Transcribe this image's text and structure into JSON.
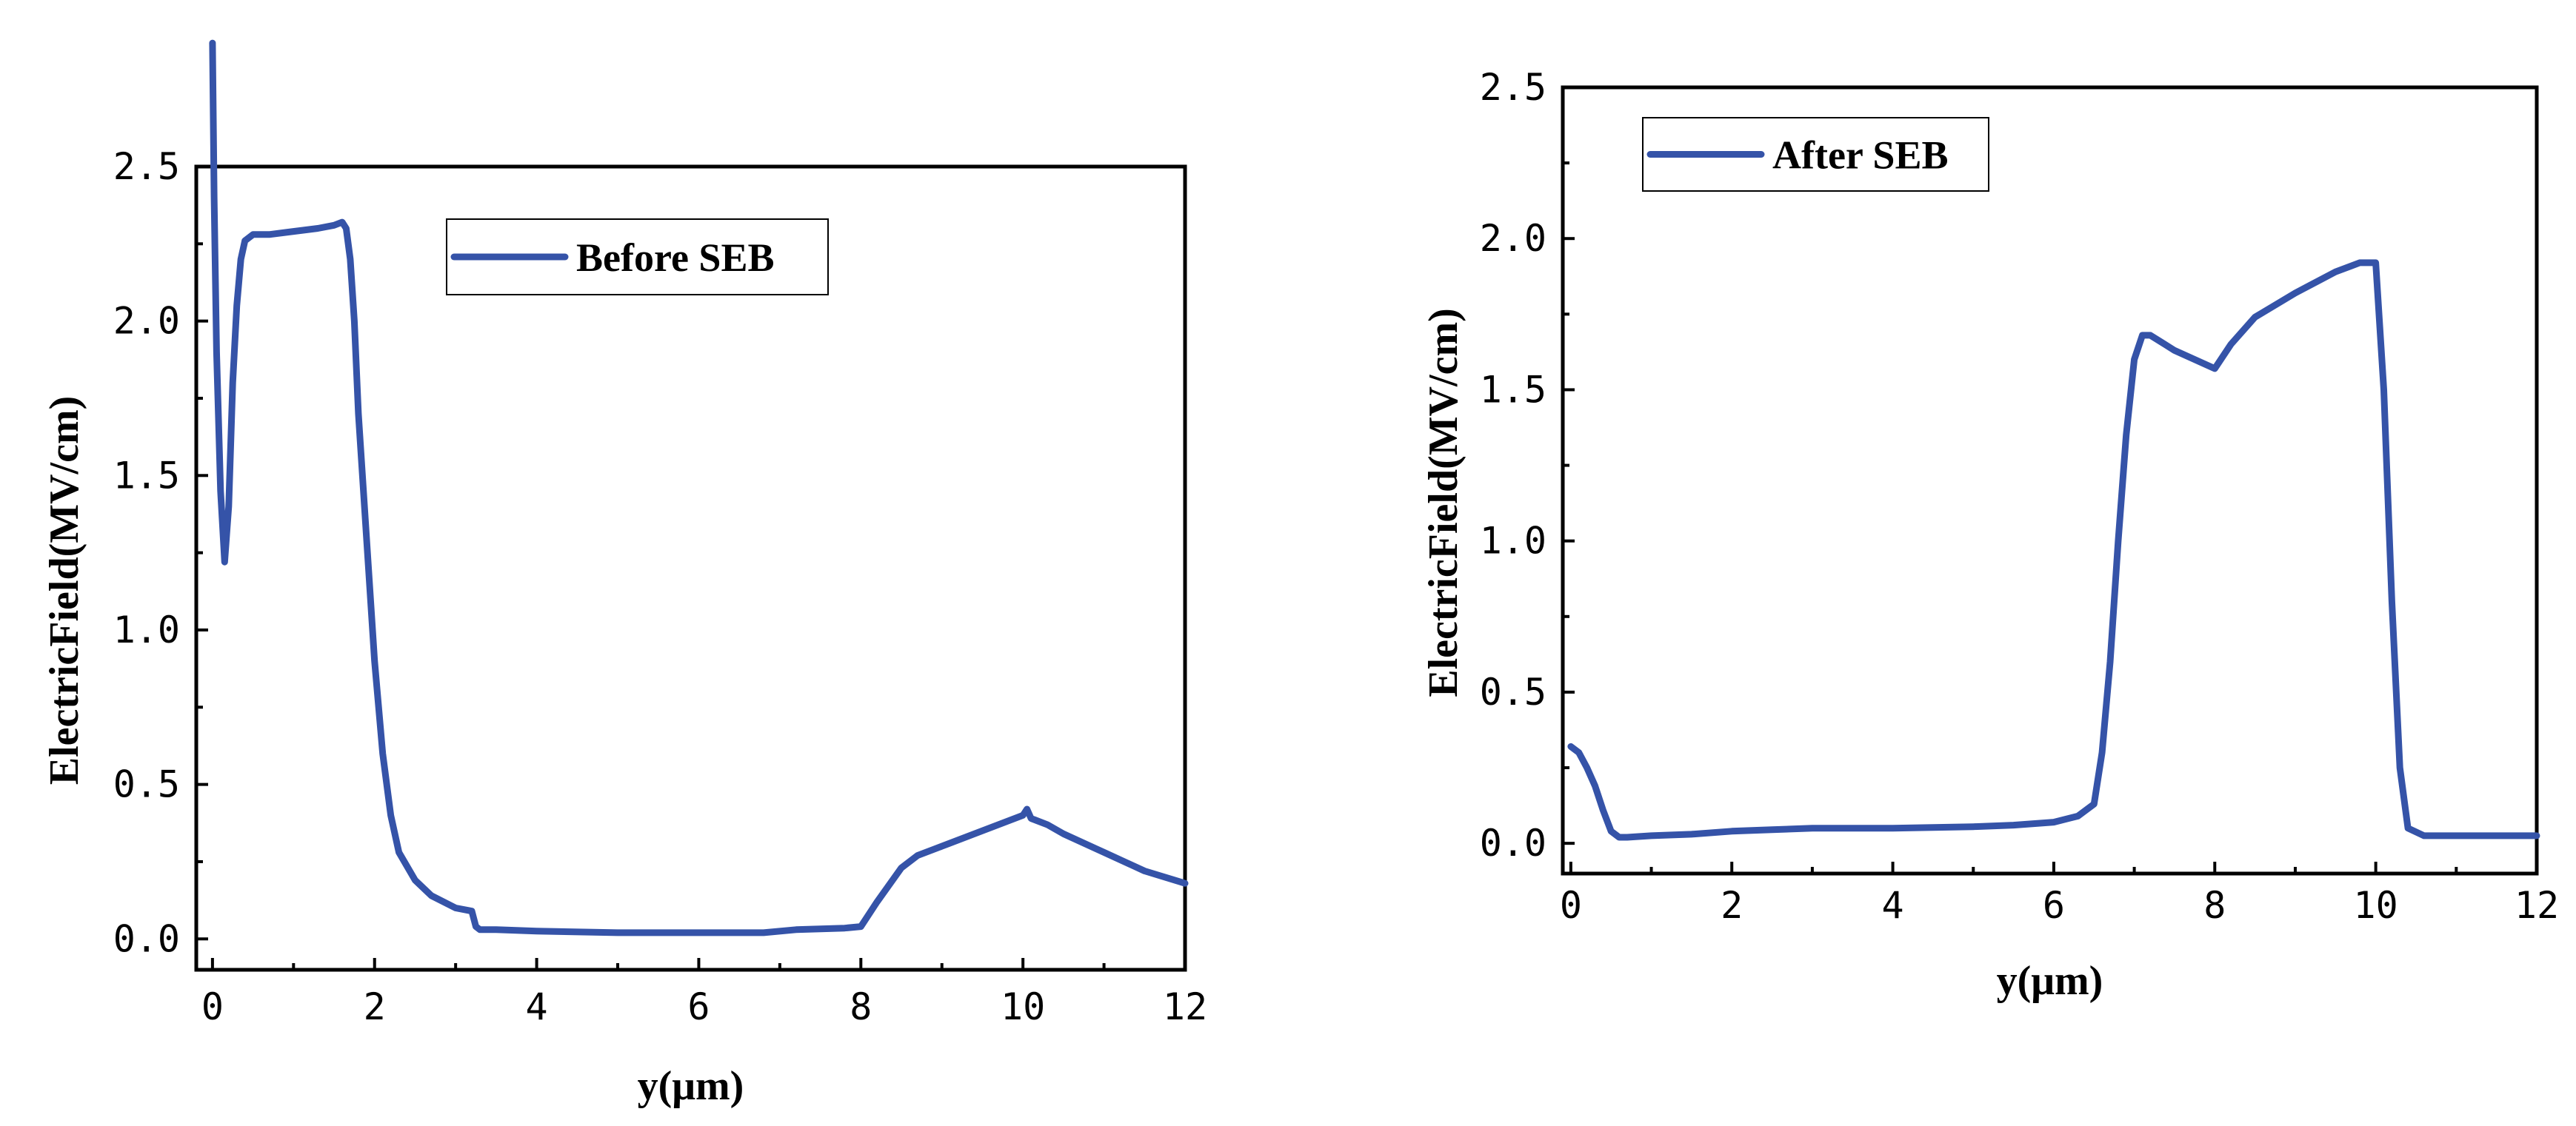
{
  "chart_data": [
    {
      "type": "line",
      "xlabel": "y(μm)",
      "ylabel": "ElectricField(MV/cm)",
      "xlim": [
        -0.2,
        12
      ],
      "ylim": [
        -0.1,
        2.5
      ],
      "xticks": [
        "0",
        "2",
        "4",
        "6",
        "8",
        "10",
        "12"
      ],
      "yticks": [
        "0.0",
        "0.5",
        "1.0",
        "1.5",
        "2.0",
        "2.5"
      ],
      "legend_position": "top-right",
      "series": [
        {
          "name": "Before SEB",
          "color": "#3553a8",
          "x": [
            0.0,
            0.02,
            0.05,
            0.1,
            0.15,
            0.2,
            0.25,
            0.3,
            0.35,
            0.4,
            0.5,
            0.7,
            1.0,
            1.3,
            1.5,
            1.6,
            1.65,
            1.7,
            1.75,
            1.8,
            1.9,
            2.0,
            2.1,
            2.2,
            2.3,
            2.5,
            2.7,
            3.0,
            3.2,
            3.25,
            3.3,
            3.5,
            4.0,
            5.0,
            6.0,
            6.8,
            7.2,
            7.8,
            8.0,
            8.2,
            8.5,
            8.7,
            9.0,
            9.5,
            10.0,
            10.05,
            10.1,
            10.3,
            10.5,
            11.0,
            11.5,
            12.0
          ],
          "y": [
            2.9,
            2.4,
            1.9,
            1.45,
            1.22,
            1.4,
            1.8,
            2.05,
            2.2,
            2.26,
            2.28,
            2.28,
            2.29,
            2.3,
            2.31,
            2.32,
            2.3,
            2.2,
            2.0,
            1.7,
            1.3,
            0.9,
            0.6,
            0.4,
            0.28,
            0.19,
            0.14,
            0.1,
            0.09,
            0.04,
            0.03,
            0.03,
            0.025,
            0.02,
            0.02,
            0.02,
            0.03,
            0.035,
            0.04,
            0.12,
            0.23,
            0.27,
            0.3,
            0.35,
            0.4,
            0.42,
            0.39,
            0.37,
            0.34,
            0.28,
            0.22,
            0.18
          ]
        }
      ]
    },
    {
      "type": "line",
      "xlabel": "y(μm)",
      "ylabel": "ElectricField(MV/cm)",
      "xlim": [
        -0.1,
        12
      ],
      "ylim": [
        -0.1,
        2.5
      ],
      "xticks": [
        "0",
        "2",
        "4",
        "6",
        "8",
        "10",
        "12"
      ],
      "yticks": [
        "0.0",
        "0.5",
        "1.0",
        "1.5",
        "2.0",
        "2.5"
      ],
      "legend_position": "top-left",
      "series": [
        {
          "name": "After SEB",
          "color": "#3553a8",
          "x": [
            0.0,
            0.1,
            0.2,
            0.3,
            0.4,
            0.5,
            0.6,
            0.7,
            1.0,
            1.5,
            2.0,
            2.5,
            3.0,
            4.0,
            5.0,
            5.5,
            6.0,
            6.3,
            6.5,
            6.6,
            6.7,
            6.8,
            6.9,
            7.0,
            7.1,
            7.2,
            7.5,
            8.0,
            8.2,
            8.5,
            9.0,
            9.5,
            9.8,
            9.9,
            10.0,
            10.1,
            10.2,
            10.3,
            10.4,
            10.6,
            11.0,
            12.0
          ],
          "y": [
            0.32,
            0.3,
            0.25,
            0.19,
            0.11,
            0.04,
            0.02,
            0.02,
            0.025,
            0.03,
            0.04,
            0.045,
            0.05,
            0.05,
            0.055,
            0.06,
            0.07,
            0.09,
            0.13,
            0.3,
            0.6,
            1.0,
            1.35,
            1.6,
            1.68,
            1.68,
            1.63,
            1.57,
            1.65,
            1.74,
            1.82,
            1.89,
            1.92,
            1.92,
            1.92,
            1.5,
            0.8,
            0.25,
            0.05,
            0.025,
            0.025,
            0.025
          ]
        }
      ]
    }
  ]
}
